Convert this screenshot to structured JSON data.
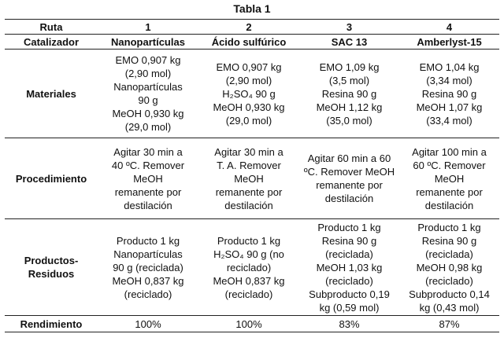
{
  "title": "Tabla 1",
  "header": {
    "ruta_label": "Ruta",
    "routes": [
      "1",
      "2",
      "3",
      "4"
    ],
    "catalizador_label": "Catalizador",
    "catalysts": [
      "Nanopartículas",
      "Ácido sulfúrico",
      "SAC 13",
      "Amberlyst-15"
    ]
  },
  "rows": {
    "materiales": {
      "label": "Materiales",
      "cells": [
        [
          "EMO 0,907 kg",
          "(2,90 mol)",
          "Nanopartículas",
          "90 g",
          "MeOH 0,930 kg",
          "(29,0 mol)"
        ],
        [
          "EMO 0,907 kg",
          "(2,90 mol)",
          "H₂SO₄ 90 g",
          "MeOH 0,930 kg",
          "(29,0 mol)"
        ],
        [
          "EMO 1,09 kg",
          "(3,5 mol)",
          "Resina 90 g",
          "MeOH 1,12 kg",
          "(35,0 mol)"
        ],
        [
          "EMO 1,04 kg",
          "(3,34 mol)",
          "Resina 90 g",
          "MeOH 1,07 kg",
          "(33,4 mol)"
        ]
      ]
    },
    "procedimiento": {
      "label": "Procedimiento",
      "cells": [
        [
          "Agitar 30 min a",
          "40 ºC. Remover",
          "MeOH",
          "remanente por",
          "destilación"
        ],
        [
          "Agitar 30 min a",
          "T. A. Remover",
          "MeOH",
          "remanente por",
          "destilación"
        ],
        [
          "Agitar 60 min a 60",
          "ºC. Remover MeOH",
          "remanente por",
          "destilación"
        ],
        [
          "Agitar 100 min a",
          "60 ºC. Remover",
          "MeOH",
          "remanente por",
          "destilación"
        ]
      ]
    },
    "productos": {
      "label_line1": "Productos-",
      "label_line2": "Residuos",
      "cells": [
        [
          "Producto 1 kg",
          "Nanopartículas",
          "90 g (reciclada)",
          "MeOH 0,837 kg",
          "(reciclado)"
        ],
        [
          "Producto 1 kg",
          "H₂SO₄ 90 g (no",
          "reciclado)",
          "MeOH 0,837 kg",
          "(reciclado)"
        ],
        [
          "Producto 1 kg",
          "Resina 90 g",
          "(reciclada)",
          "MeOH 1,03 kg",
          "(reciclado)",
          "Subproducto 0,19",
          "kg (0,59 mol)"
        ],
        [
          "Producto 1 kg",
          "Resina 90 g",
          "(reciclada)",
          "MeOH 0,98 kg",
          "(reciclado)",
          "Subproducto 0,14",
          "kg (0,43 mol)"
        ]
      ]
    },
    "rendimiento": {
      "label": "Rendimiento",
      "values": [
        "100%",
        "100%",
        "83%",
        "87%"
      ]
    }
  }
}
